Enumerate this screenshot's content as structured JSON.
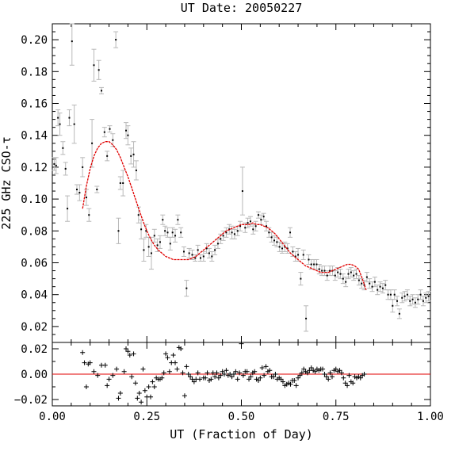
{
  "chart_data": {
    "type": "scatter",
    "title": "UT Date: 20050227",
    "xlabel": "UT (Fraction of Day)",
    "ylabel": "225 GHz CSO-τ",
    "xlim": [
      0.0,
      1.0
    ],
    "ylim": [
      0.01,
      0.21
    ],
    "resid_ylim": [
      -0.025,
      0.025
    ],
    "x_ticks": [
      "0.00",
      "0.25",
      "0.50",
      "0.75",
      "1.00"
    ],
    "y_ticks": [
      "0.02",
      "0.04",
      "0.06",
      "0.08",
      "0.10",
      "0.12",
      "0.14",
      "0.16",
      "0.18",
      "0.20"
    ],
    "resid_ticks": [
      "−0.02",
      "0.00",
      "0.02"
    ],
    "colors": {
      "points": "#000000",
      "error_bars": "#b8b8b8",
      "fit": "#e00000",
      "zero_line": "#e00000"
    },
    "points": [
      [
        0.005,
        0.122,
        0.004
      ],
      [
        0.01,
        0.121,
        0.005
      ],
      [
        0.015,
        0.151,
        0.005
      ],
      [
        0.02,
        0.147,
        0.007
      ],
      [
        0.028,
        0.132,
        0.004
      ],
      [
        0.035,
        0.119,
        0.004
      ],
      [
        0.04,
        0.094,
        0.008
      ],
      [
        0.045,
        0.151,
        0.005
      ],
      [
        0.052,
        0.199,
        0.015
      ],
      [
        0.058,
        0.147,
        0.012
      ],
      [
        0.065,
        0.106,
        0.003
      ],
      [
        0.072,
        0.104,
        0.005
      ],
      [
        0.08,
        0.12,
        0.006
      ],
      [
        0.09,
        0.101,
        0.005
      ],
      [
        0.097,
        0.09,
        0.004
      ],
      [
        0.105,
        0.135,
        0.015
      ],
      [
        0.11,
        0.184,
        0.01
      ],
      [
        0.118,
        0.106,
        0.002
      ],
      [
        0.123,
        0.181,
        0.006
      ],
      [
        0.13,
        0.168,
        0.002
      ],
      [
        0.138,
        0.142,
        0.003
      ],
      [
        0.145,
        0.127,
        0.003
      ],
      [
        0.152,
        0.144,
        0.002
      ],
      [
        0.16,
        0.137,
        0.004
      ],
      [
        0.168,
        0.2,
        0.005
      ],
      [
        0.175,
        0.08,
        0.008
      ],
      [
        0.18,
        0.11,
        0.004
      ],
      [
        0.187,
        0.11,
        0.008
      ],
      [
        0.195,
        0.143,
        0.005
      ],
      [
        0.2,
        0.14,
        0.006
      ],
      [
        0.208,
        0.127,
        0.005
      ],
      [
        0.215,
        0.128,
        0.008
      ],
      [
        0.222,
        0.118,
        0.006
      ],
      [
        0.228,
        0.09,
        0.005
      ],
      [
        0.235,
        0.081,
        0.006
      ],
      [
        0.242,
        0.068,
        0.007
      ],
      [
        0.248,
        0.08,
        0.004
      ],
      [
        0.255,
        0.07,
        0.006
      ],
      [
        0.262,
        0.066,
        0.01
      ],
      [
        0.27,
        0.077,
        0.004
      ],
      [
        0.278,
        0.071,
        0.004
      ],
      [
        0.285,
        0.073,
        0.004
      ],
      [
        0.292,
        0.087,
        0.003
      ],
      [
        0.298,
        0.08,
        0.003
      ],
      [
        0.305,
        0.079,
        0.003
      ],
      [
        0.312,
        0.072,
        0.004
      ],
      [
        0.318,
        0.079,
        0.003
      ],
      [
        0.325,
        0.077,
        0.004
      ],
      [
        0.332,
        0.087,
        0.003
      ],
      [
        0.34,
        0.079,
        0.003
      ],
      [
        0.348,
        0.067,
        0.003
      ],
      [
        0.355,
        0.044,
        0.005
      ],
      [
        0.362,
        0.066,
        0.003
      ],
      [
        0.37,
        0.065,
        0.003
      ],
      [
        0.378,
        0.063,
        0.002
      ],
      [
        0.385,
        0.068,
        0.003
      ],
      [
        0.392,
        0.063,
        0.002
      ],
      [
        0.4,
        0.064,
        0.003
      ],
      [
        0.408,
        0.069,
        0.003
      ],
      [
        0.415,
        0.066,
        0.003
      ],
      [
        0.422,
        0.064,
        0.003
      ],
      [
        0.43,
        0.068,
        0.003
      ],
      [
        0.438,
        0.072,
        0.003
      ],
      [
        0.445,
        0.075,
        0.003
      ],
      [
        0.452,
        0.077,
        0.003
      ],
      [
        0.46,
        0.079,
        0.003
      ],
      [
        0.468,
        0.081,
        0.003
      ],
      [
        0.475,
        0.079,
        0.004
      ],
      [
        0.482,
        0.078,
        0.003
      ],
      [
        0.49,
        0.08,
        0.003
      ],
      [
        0.497,
        0.083,
        0.003
      ],
      [
        0.503,
        0.105,
        0.015
      ],
      [
        0.51,
        0.082,
        0.003
      ],
      [
        0.517,
        0.085,
        0.003
      ],
      [
        0.524,
        0.086,
        0.003
      ],
      [
        0.531,
        0.081,
        0.003
      ],
      [
        0.538,
        0.083,
        0.003
      ],
      [
        0.545,
        0.09,
        0.002
      ],
      [
        0.552,
        0.087,
        0.003
      ],
      [
        0.559,
        0.089,
        0.002
      ],
      [
        0.566,
        0.083,
        0.003
      ],
      [
        0.573,
        0.079,
        0.003
      ],
      [
        0.58,
        0.076,
        0.003
      ],
      [
        0.587,
        0.074,
        0.003
      ],
      [
        0.594,
        0.073,
        0.003
      ],
      [
        0.601,
        0.07,
        0.003
      ],
      [
        0.608,
        0.069,
        0.003
      ],
      [
        0.615,
        0.07,
        0.003
      ],
      [
        0.622,
        0.069,
        0.003
      ],
      [
        0.629,
        0.079,
        0.003
      ],
      [
        0.636,
        0.067,
        0.003
      ],
      [
        0.643,
        0.064,
        0.003
      ],
      [
        0.65,
        0.065,
        0.004
      ],
      [
        0.657,
        0.05,
        0.004
      ],
      [
        0.664,
        0.065,
        0.003
      ],
      [
        0.671,
        0.025,
        0.008
      ],
      [
        0.678,
        0.062,
        0.003
      ],
      [
        0.685,
        0.059,
        0.003
      ],
      [
        0.692,
        0.059,
        0.003
      ],
      [
        0.699,
        0.059,
        0.003
      ],
      [
        0.706,
        0.056,
        0.003
      ],
      [
        0.713,
        0.055,
        0.003
      ],
      [
        0.72,
        0.055,
        0.003
      ],
      [
        0.727,
        0.052,
        0.003
      ],
      [
        0.734,
        0.055,
        0.003
      ],
      [
        0.741,
        0.055,
        0.003
      ],
      [
        0.748,
        0.052,
        0.003
      ],
      [
        0.755,
        0.054,
        0.003
      ],
      [
        0.762,
        0.053,
        0.003
      ],
      [
        0.769,
        0.05,
        0.003
      ],
      [
        0.776,
        0.048,
        0.003
      ],
      [
        0.783,
        0.053,
        0.003
      ],
      [
        0.79,
        0.054,
        0.003
      ],
      [
        0.797,
        0.052,
        0.003
      ],
      [
        0.804,
        0.053,
        0.003
      ],
      [
        0.811,
        0.049,
        0.003
      ],
      [
        0.818,
        0.047,
        0.003
      ],
      [
        0.825,
        0.046,
        0.003
      ],
      [
        0.832,
        0.051,
        0.003
      ],
      [
        0.839,
        0.047,
        0.003
      ],
      [
        0.846,
        0.045,
        0.003
      ],
      [
        0.853,
        0.048,
        0.003
      ],
      [
        0.86,
        0.043,
        0.003
      ],
      [
        0.867,
        0.045,
        0.003
      ],
      [
        0.874,
        0.044,
        0.003
      ],
      [
        0.881,
        0.046,
        0.003
      ],
      [
        0.888,
        0.04,
        0.003
      ],
      [
        0.895,
        0.04,
        0.003
      ],
      [
        0.9,
        0.033,
        0.004
      ],
      [
        0.905,
        0.04,
        0.003
      ],
      [
        0.912,
        0.036,
        0.003
      ],
      [
        0.918,
        0.028,
        0.003
      ],
      [
        0.925,
        0.038,
        0.003
      ],
      [
        0.932,
        0.039,
        0.003
      ],
      [
        0.939,
        0.04,
        0.003
      ],
      [
        0.946,
        0.036,
        0.003
      ],
      [
        0.953,
        0.037,
        0.003
      ],
      [
        0.96,
        0.035,
        0.003
      ],
      [
        0.967,
        0.037,
        0.003
      ],
      [
        0.974,
        0.04,
        0.003
      ],
      [
        0.981,
        0.036,
        0.003
      ],
      [
        0.988,
        0.038,
        0.003
      ],
      [
        0.995,
        0.039,
        0.003
      ]
    ],
    "fit": [
      [
        0.08,
        0.094
      ],
      [
        0.09,
        0.108
      ],
      [
        0.1,
        0.119
      ],
      [
        0.11,
        0.127
      ],
      [
        0.12,
        0.132
      ],
      [
        0.13,
        0.135
      ],
      [
        0.14,
        0.136
      ],
      [
        0.15,
        0.136
      ],
      [
        0.16,
        0.134
      ],
      [
        0.17,
        0.131
      ],
      [
        0.18,
        0.126
      ],
      [
        0.19,
        0.12
      ],
      [
        0.2,
        0.114
      ],
      [
        0.21,
        0.107
      ],
      [
        0.22,
        0.1
      ],
      [
        0.23,
        0.093
      ],
      [
        0.24,
        0.086
      ],
      [
        0.25,
        0.08
      ],
      [
        0.26,
        0.075
      ],
      [
        0.27,
        0.071
      ],
      [
        0.28,
        0.068
      ],
      [
        0.29,
        0.066
      ],
      [
        0.3,
        0.064
      ],
      [
        0.31,
        0.063
      ],
      [
        0.32,
        0.062
      ],
      [
        0.33,
        0.062
      ],
      [
        0.34,
        0.062
      ],
      [
        0.35,
        0.062
      ],
      [
        0.36,
        0.062
      ],
      [
        0.37,
        0.063
      ],
      [
        0.38,
        0.064
      ],
      [
        0.39,
        0.066
      ],
      [
        0.4,
        0.068
      ],
      [
        0.41,
        0.07
      ],
      [
        0.42,
        0.072
      ],
      [
        0.43,
        0.074
      ],
      [
        0.44,
        0.076
      ],
      [
        0.45,
        0.078
      ],
      [
        0.46,
        0.08
      ],
      [
        0.47,
        0.081
      ],
      [
        0.48,
        0.082
      ],
      [
        0.49,
        0.083
      ],
      [
        0.5,
        0.084
      ],
      [
        0.51,
        0.084
      ],
      [
        0.52,
        0.084
      ],
      [
        0.53,
        0.085
      ],
      [
        0.54,
        0.084
      ],
      [
        0.55,
        0.084
      ],
      [
        0.56,
        0.083
      ],
      [
        0.57,
        0.082
      ],
      [
        0.58,
        0.08
      ],
      [
        0.59,
        0.078
      ],
      [
        0.6,
        0.075
      ],
      [
        0.61,
        0.072
      ],
      [
        0.62,
        0.069
      ],
      [
        0.63,
        0.066
      ],
      [
        0.64,
        0.064
      ],
      [
        0.65,
        0.062
      ],
      [
        0.66,
        0.06
      ],
      [
        0.67,
        0.058
      ],
      [
        0.68,
        0.057
      ],
      [
        0.69,
        0.056
      ],
      [
        0.7,
        0.055
      ],
      [
        0.71,
        0.054
      ],
      [
        0.72,
        0.054
      ],
      [
        0.73,
        0.054
      ],
      [
        0.74,
        0.055
      ],
      [
        0.75,
        0.056
      ],
      [
        0.76,
        0.057
      ],
      [
        0.77,
        0.058
      ],
      [
        0.78,
        0.059
      ],
      [
        0.79,
        0.059
      ],
      [
        0.8,
        0.058
      ],
      [
        0.81,
        0.056
      ],
      [
        0.82,
        0.05
      ],
      [
        0.83,
        0.043
      ]
    ],
    "residuals": [
      [
        0.08,
        0.017
      ],
      [
        0.085,
        0.009
      ],
      [
        0.09,
        -0.01
      ],
      [
        0.095,
        0.008
      ],
      [
        0.1,
        0.009
      ],
      [
        0.11,
        0.002
      ],
      [
        0.12,
        -0.001
      ],
      [
        0.13,
        0.007
      ],
      [
        0.14,
        0.007
      ],
      [
        0.145,
        -0.009
      ],
      [
        0.15,
        -0.004
      ],
      [
        0.16,
        -0.001
      ],
      [
        0.17,
        0.004
      ],
      [
        0.175,
        -0.019
      ],
      [
        0.18,
        -0.015
      ],
      [
        0.19,
        0.002
      ],
      [
        0.195,
        0.02
      ],
      [
        0.2,
        0.018
      ],
      [
        0.205,
        0.015
      ],
      [
        0.21,
        -0.002
      ],
      [
        0.215,
        0.016
      ],
      [
        0.22,
        -0.007
      ],
      [
        0.225,
        -0.019
      ],
      [
        0.23,
        -0.015
      ],
      [
        0.235,
        -0.022
      ],
      [
        0.24,
        0.004
      ],
      [
        0.245,
        -0.013
      ],
      [
        0.25,
        -0.018
      ],
      [
        0.255,
        -0.01
      ],
      [
        0.26,
        -0.018
      ],
      [
        0.265,
        -0.006
      ],
      [
        0.27,
        -0.01
      ],
      [
        0.275,
        -0.003
      ],
      [
        0.28,
        -0.004
      ],
      [
        0.285,
        -0.004
      ],
      [
        0.29,
        -0.003
      ],
      [
        0.295,
        0.001
      ],
      [
        0.3,
        0.016
      ],
      [
        0.305,
        0.013
      ],
      [
        0.31,
        0.002
      ],
      [
        0.315,
        0.009
      ],
      [
        0.32,
        0.015
      ],
      [
        0.325,
        0.009
      ],
      [
        0.33,
        0.004
      ],
      [
        0.335,
        0.021
      ],
      [
        0.34,
        0.02
      ],
      [
        0.345,
        0.001
      ],
      [
        0.35,
        -0.017
      ],
      [
        0.355,
        0.006
      ],
      [
        0.36,
        0.0
      ],
      [
        0.365,
        -0.002
      ],
      [
        0.37,
        -0.004
      ],
      [
        0.375,
        -0.006
      ],
      [
        0.38,
        -0.004
      ],
      [
        0.385,
        0.001
      ],
      [
        0.39,
        -0.004
      ],
      [
        0.4,
        -0.003
      ],
      [
        0.405,
        -0.003
      ],
      [
        0.41,
        0.001
      ],
      [
        0.415,
        -0.005
      ],
      [
        0.42,
        -0.004
      ],
      [
        0.425,
        0.001
      ],
      [
        0.43,
        -0.002
      ],
      [
        0.435,
        0.001
      ],
      [
        0.44,
        -0.003
      ],
      [
        0.445,
        -0.001
      ],
      [
        0.45,
        0.002
      ],
      [
        0.455,
        0.0
      ],
      [
        0.46,
        0.003
      ],
      [
        0.465,
        -0.001
      ],
      [
        0.47,
        0.0
      ],
      [
        0.475,
        -0.002
      ],
      [
        0.48,
        0.0
      ],
      [
        0.485,
        0.002
      ],
      [
        0.49,
        -0.004
      ],
      [
        0.495,
        0.001
      ],
      [
        0.5,
        0.024
      ],
      [
        0.505,
        -0.001
      ],
      [
        0.51,
        0.002
      ],
      [
        0.515,
        0.002
      ],
      [
        0.52,
        -0.004
      ],
      [
        0.525,
        -0.002
      ],
      [
        0.53,
        0.001
      ],
      [
        0.535,
        0.002
      ],
      [
        0.54,
        -0.004
      ],
      [
        0.545,
        -0.005
      ],
      [
        0.55,
        -0.003
      ],
      [
        0.555,
        0.005
      ],
      [
        0.56,
        -0.001
      ],
      [
        0.565,
        0.006
      ],
      [
        0.57,
        0.002
      ],
      [
        0.575,
        0.003
      ],
      [
        0.58,
        -0.002
      ],
      [
        0.585,
        -0.002
      ],
      [
        0.59,
        0.0
      ],
      [
        0.595,
        -0.004
      ],
      [
        0.6,
        -0.003
      ],
      [
        0.605,
        -0.004
      ],
      [
        0.61,
        -0.006
      ],
      [
        0.615,
        -0.009
      ],
      [
        0.62,
        -0.008
      ],
      [
        0.625,
        -0.007
      ],
      [
        0.63,
        -0.008
      ],
      [
        0.635,
        -0.005
      ],
      [
        0.64,
        -0.005
      ],
      [
        0.645,
        -0.009
      ],
      [
        0.65,
        -0.003
      ],
      [
        0.655,
        -0.001
      ],
      [
        0.66,
        0.001
      ],
      [
        0.665,
        0.004
      ],
      [
        0.67,
        0.002
      ],
      [
        0.675,
        0.001
      ],
      [
        0.68,
        0.003
      ],
      [
        0.685,
        0.005
      ],
      [
        0.69,
        0.003
      ],
      [
        0.695,
        0.002
      ],
      [
        0.7,
        0.004
      ],
      [
        0.705,
        0.003
      ],
      [
        0.71,
        0.004
      ],
      [
        0.715,
        0.004
      ],
      [
        0.72,
        0.0
      ],
      [
        0.725,
        -0.002
      ],
      [
        0.73,
        -0.004
      ],
      [
        0.735,
        0.001
      ],
      [
        0.74,
        -0.002
      ],
      [
        0.745,
        0.003
      ],
      [
        0.75,
        0.004
      ],
      [
        0.755,
        0.002
      ],
      [
        0.76,
        0.003
      ],
      [
        0.765,
        0.001
      ],
      [
        0.77,
        -0.003
      ],
      [
        0.775,
        -0.007
      ],
      [
        0.78,
        -0.009
      ],
      [
        0.785,
        -0.001
      ],
      [
        0.79,
        -0.006
      ],
      [
        0.795,
        -0.007
      ],
      [
        0.8,
        -0.002
      ],
      [
        0.805,
        -0.003
      ],
      [
        0.81,
        -0.002
      ],
      [
        0.815,
        -0.003
      ],
      [
        0.82,
        -0.001
      ],
      [
        0.825,
        0.0
      ]
    ]
  }
}
